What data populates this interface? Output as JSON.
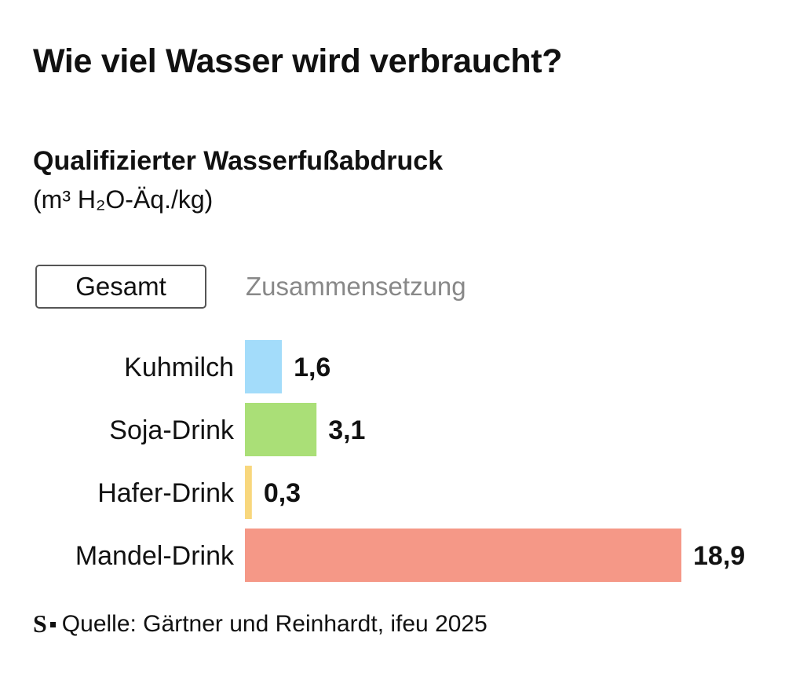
{
  "header": {
    "title": "Wie viel Wasser wird verbraucht?",
    "subtitle": "Qualifizierter Wasserfußabdruck",
    "unit": "(m³ H₂O-Äq./kg)"
  },
  "tabs": [
    {
      "label": "Gesamt",
      "active": true
    },
    {
      "label": "Zusammensetzung",
      "active": false
    }
  ],
  "chart_data": {
    "type": "bar",
    "orientation": "horizontal",
    "title": "Qualifizierter Wasserfußabdruck",
    "xlabel": "",
    "ylabel": "",
    "grid": false,
    "xlim": [
      0,
      18.9
    ],
    "categories": [
      "Kuhmilch",
      "Soja-Drink",
      "Hafer-Drink",
      "Mandel-Drink"
    ],
    "values": [
      1.6,
      3.1,
      0.3,
      18.9
    ],
    "value_labels": [
      "1,6",
      "3,1",
      "0,3",
      "18,9"
    ],
    "colors": [
      "#a3dcfa",
      "#aadf77",
      "#f8d77d",
      "#f59887"
    ]
  },
  "footer": {
    "logo": "S",
    "source": "Quelle: Gärtner und Reinhardt, ifeu 2025"
  }
}
